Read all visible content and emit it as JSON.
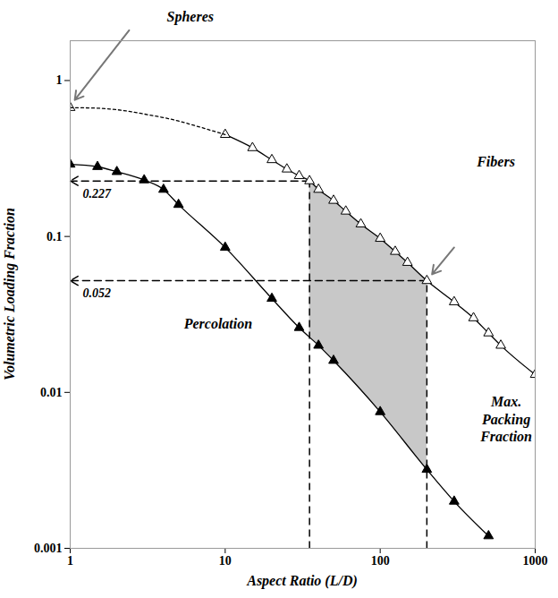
{
  "chart_data": {
    "type": "line",
    "x_label": "Aspect Ratio (L/D)",
    "y_label": "Volumetric Loading Fraction",
    "log": true,
    "grid": false,
    "xlim": [
      1,
      1000
    ],
    "xticks": [
      1,
      10,
      100,
      1000
    ],
    "ylim": [
      0.001,
      1.8
    ],
    "yticks": [
      0.001,
      0.01,
      0.1,
      1
    ],
    "series": [
      {
        "name": "Max. Packing Fraction",
        "color": "#000000",
        "marker": "open triangle",
        "line_style": "solid",
        "x": [
          1,
          5,
          10,
          15,
          20,
          25,
          30,
          35,
          40,
          50,
          60,
          75,
          100,
          125,
          150,
          200,
          300,
          400,
          500,
          600,
          1000
        ],
        "values": [
          0.67,
          null,
          0.45,
          0.37,
          0.31,
          0.27,
          0.245,
          0.227,
          0.2,
          0.17,
          0.145,
          0.12,
          0.097,
          0.08,
          0.068,
          0.052,
          0.038,
          0.03,
          0.024,
          0.02,
          0.013
        ]
      },
      {
        "name": "Max. Packing Fraction",
        "color": "#000000",
        "marker": "none",
        "line_style": "dotted",
        "x": [
          1,
          1.5,
          2,
          3,
          5,
          7,
          10
        ],
        "values": [
          0.67,
          0.665,
          0.65,
          0.61,
          0.55,
          0.5,
          0.45
        ]
      },
      {
        "name": "Percolation",
        "color": "#000000",
        "marker": "filled triangle",
        "line_style": "solid",
        "x": [
          1,
          1.5,
          2,
          3,
          4,
          5,
          10,
          20,
          30,
          40,
          50,
          100,
          200,
          300,
          500
        ],
        "values": [
          0.29,
          0.28,
          0.26,
          0.23,
          0.2,
          0.16,
          0.085,
          0.04,
          0.026,
          0.02,
          0.016,
          0.0075,
          0.0032,
          0.002,
          0.0012
        ]
      }
    ],
    "reference_lines": [
      {
        "x": 35,
        "y": 0.227
      },
      {
        "x": 200,
        "y": 0.052
      }
    ],
    "shaded_range": [
      35,
      200
    ],
    "annotations": [
      "Spheres",
      "Fibers"
    ]
  }
}
